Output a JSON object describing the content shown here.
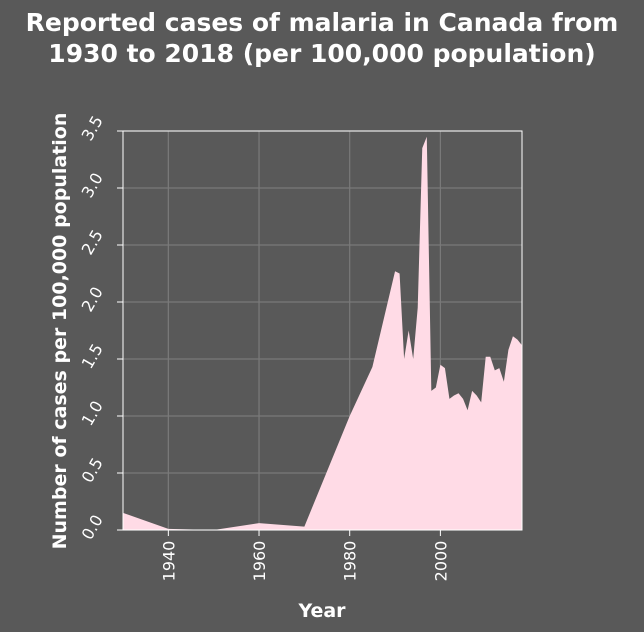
{
  "chart_data": {
    "type": "area",
    "title_lines": [
      "Reported cases of malaria in Canada from",
      "1930 to 2018 (per 100,000 population)"
    ],
    "xlabel": "Year",
    "ylabel": "Number of cases per 100,000 population",
    "xlim": [
      1930,
      2018
    ],
    "ylim": [
      0,
      3.5
    ],
    "xticks": [
      1940,
      1960,
      1980,
      2000
    ],
    "yticks": [
      "0.0",
      "0.5",
      "1.0",
      "1.5",
      "2.0",
      "2.5",
      "3.0",
      "3.5"
    ],
    "grid": true,
    "colors": {
      "background": "#595959",
      "area": "#ffdbe6",
      "grid": "#7a7a7a",
      "text": "#ffffff"
    },
    "x": [
      1930,
      1940,
      1950,
      1960,
      1970,
      1980,
      1985,
      1990,
      1991,
      1992,
      1993,
      1994,
      1995,
      1996,
      1997,
      1998,
      1999,
      2000,
      2001,
      2002,
      2003,
      2004,
      2005,
      2006,
      2007,
      2008,
      2009,
      2010,
      2011,
      2012,
      2013,
      2014,
      2015,
      2016,
      2017,
      2018
    ],
    "y": [
      0.15,
      0.01,
      0.0,
      0.06,
      0.03,
      1.0,
      1.43,
      2.27,
      2.25,
      1.5,
      1.75,
      1.5,
      1.95,
      3.35,
      3.45,
      1.22,
      1.25,
      1.45,
      1.42,
      1.15,
      1.18,
      1.2,
      1.15,
      1.05,
      1.22,
      1.18,
      1.12,
      1.52,
      1.52,
      1.4,
      1.42,
      1.3,
      1.58,
      1.7,
      1.67,
      1.62
    ]
  }
}
